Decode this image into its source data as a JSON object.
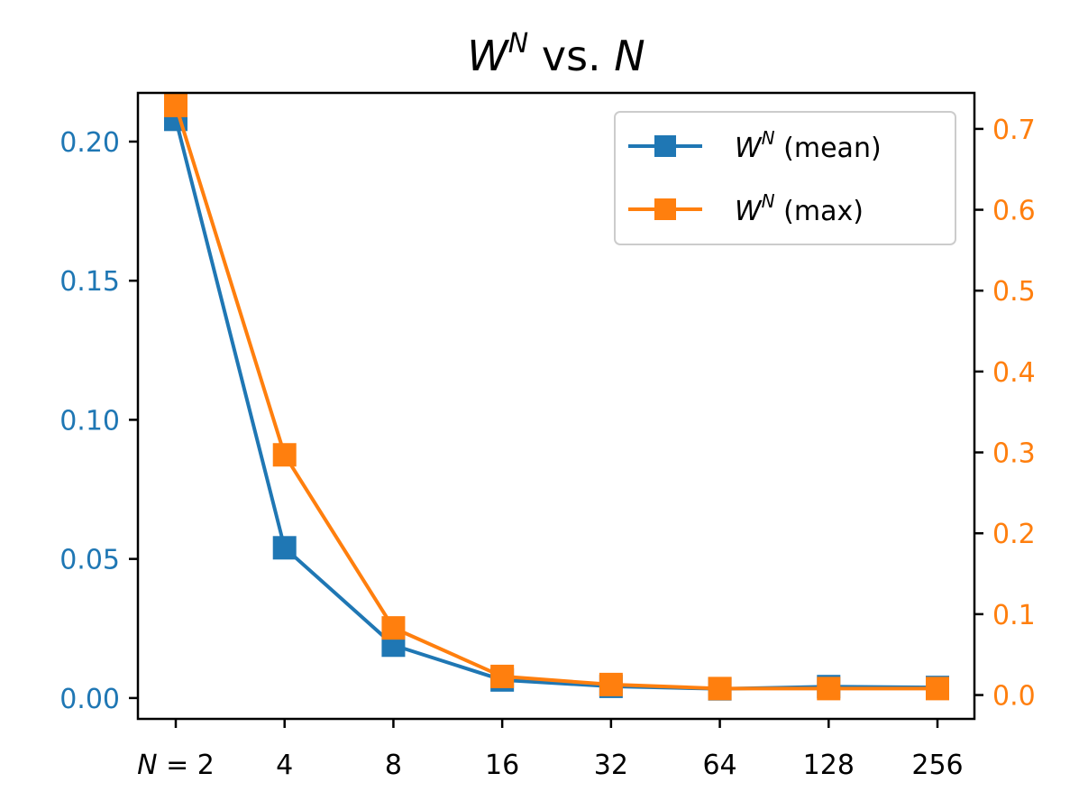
{
  "chart_data": {
    "type": "line",
    "title": {
      "var": "W",
      "sup": "N",
      "mid": " vs. ",
      "end": "N"
    },
    "categories": [
      "2",
      "4",
      "8",
      "16",
      "32",
      "64",
      "128",
      "256"
    ],
    "x_first_tick_prefix": "N = ",
    "series": [
      {
        "name": "W^N (mean)",
        "legend_var": "W",
        "legend_sup": "N",
        "legend_rest": " (mean)",
        "axis": "left",
        "color": "#1f77b4",
        "marker": "square",
        "values": [
          0.208,
          0.054,
          0.019,
          0.0065,
          0.0042,
          0.0033,
          0.0041,
          0.0038
        ]
      },
      {
        "name": "W^N (max)",
        "legend_var": "W",
        "legend_sup": "N",
        "legend_rest": " (max)",
        "axis": "right",
        "color": "#ff7f0e",
        "marker": "square",
        "values": [
          0.729,
          0.297,
          0.083,
          0.023,
          0.013,
          0.008,
          0.008,
          0.008
        ]
      }
    ],
    "y_left": {
      "ylim": [
        -0.0075,
        0.2175
      ],
      "ticks": [
        "0.00",
        "0.05",
        "0.10",
        "0.15",
        "0.20"
      ],
      "color": "#1f77b4"
    },
    "y_right": {
      "ylim": [
        -0.0295,
        0.7445
      ],
      "ticks": [
        "0.0",
        "0.1",
        "0.2",
        "0.3",
        "0.4",
        "0.5",
        "0.6",
        "0.7"
      ],
      "color": "#ff7f0e"
    },
    "legend_position": "top-right",
    "grid": false
  }
}
